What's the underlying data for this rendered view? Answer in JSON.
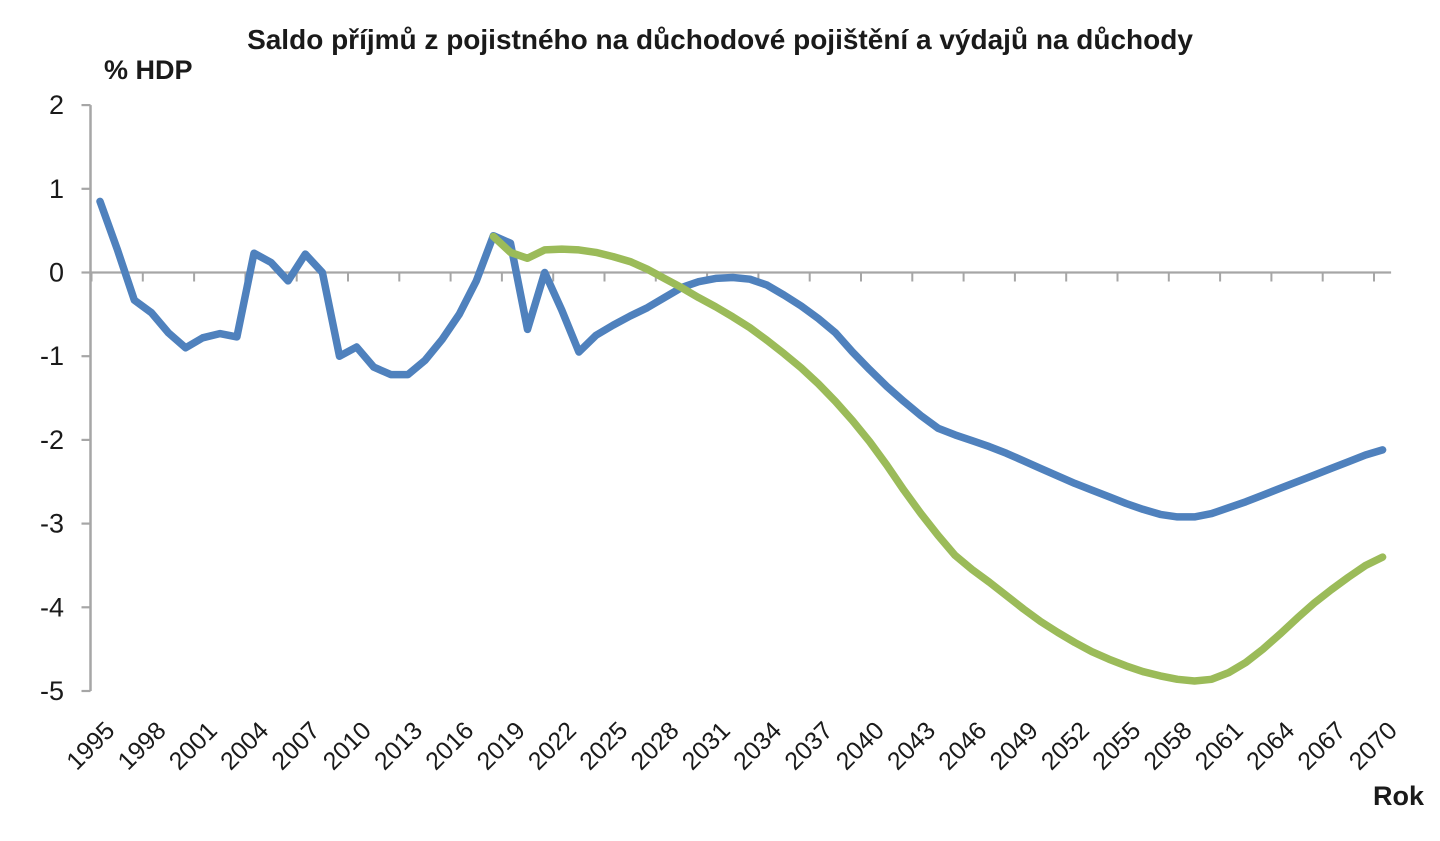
{
  "page": {
    "background_color": "#ffffff",
    "text_color": "#1a1a1a"
  },
  "chart_data": {
    "type": "line",
    "title": "Saldo příjmů z pojistného na důchodové pojištění a výdajů na důchody",
    "y_axis_label": "% HDP",
    "x_axis_label": "Rok",
    "ylim": [
      -5,
      2
    ],
    "x_range": [
      1995,
      2070
    ],
    "y_ticks": [
      2,
      1,
      0,
      -1,
      -2,
      -3,
      -4,
      -5
    ],
    "x_tick_labels": [
      "1995",
      "1998",
      "2001",
      "2004",
      "2007",
      "2010",
      "2013",
      "2016",
      "2019",
      "2022",
      "2025",
      "2028",
      "2031",
      "2034",
      "2037",
      "2040",
      "2043",
      "2046",
      "2049",
      "2052",
      "2055",
      "2058",
      "2061",
      "2064",
      "2067",
      "2070"
    ],
    "x_tick_interval_years": 3,
    "grid": "zero-line-only",
    "legend": "none",
    "axis_color": "#a6a6a6",
    "label_color": "#1a1a1a",
    "series": [
      {
        "name": "blue-line",
        "color": "#4f81bd",
        "start_year": 1995,
        "values": [
          0.85,
          0.28,
          -0.33,
          -0.48,
          -0.72,
          -0.9,
          -0.78,
          -0.73,
          -0.77,
          0.23,
          0.12,
          -0.1,
          0.22,
          0.0,
          -1.0,
          -0.89,
          -1.13,
          -1.22,
          -1.22,
          -1.05,
          -0.8,
          -0.5,
          -0.1,
          0.44,
          0.35,
          -0.68,
          0.0,
          -0.45,
          -0.95,
          -0.75,
          -0.63,
          -0.52,
          -0.42,
          -0.3,
          -0.18,
          -0.11,
          -0.07,
          -0.06,
          -0.08,
          -0.15,
          -0.27,
          -0.4,
          -0.55,
          -0.72,
          -0.95,
          -1.16,
          -1.36,
          -1.54,
          -1.71,
          -1.86,
          -1.94,
          -2.01,
          -2.08,
          -2.16,
          -2.25,
          -2.34,
          -2.43,
          -2.52,
          -2.6,
          -2.68,
          -2.76,
          -2.83,
          -2.89,
          -2.92,
          -2.92,
          -2.88,
          -2.81,
          -2.74,
          -2.66,
          -2.58,
          -2.5,
          -2.42,
          -2.34,
          -2.26,
          -2.18,
          -2.12
        ]
      },
      {
        "name": "green-line",
        "color": "#9bbb59",
        "start_year": 2018,
        "values": [
          0.43,
          0.24,
          0.17,
          0.27,
          0.28,
          0.27,
          0.24,
          0.19,
          0.13,
          0.04,
          -0.07,
          -0.18,
          -0.3,
          -0.41,
          -0.53,
          -0.66,
          -0.81,
          -0.97,
          -1.14,
          -1.33,
          -1.54,
          -1.77,
          -2.02,
          -2.3,
          -2.6,
          -2.88,
          -3.14,
          -3.38,
          -3.55,
          -3.7,
          -3.86,
          -4.02,
          -4.17,
          -4.3,
          -4.42,
          -4.53,
          -4.62,
          -4.7,
          -4.77,
          -4.82,
          -4.86,
          -4.88,
          -4.86,
          -4.78,
          -4.66,
          -4.5,
          -4.32,
          -4.13,
          -3.95,
          -3.79,
          -3.64,
          -3.5,
          -3.4
        ]
      }
    ]
  }
}
